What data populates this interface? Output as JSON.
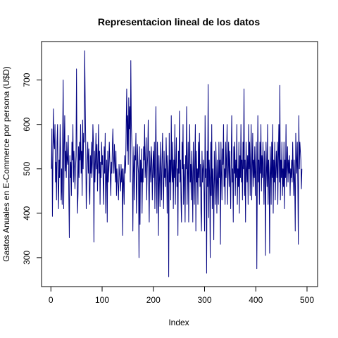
{
  "chart_data": {
    "type": "line",
    "title": "Representacion lineal de los datos",
    "xlabel": "Index",
    "ylabel": "Gastos Anuales en E-Commerce por persona (U$D)",
    "xlim": [
      1,
      500
    ],
    "ylim": [
      257,
      766
    ],
    "x_ticks": [
      0,
      100,
      200,
      300,
      400,
      500
    ],
    "y_ticks": [
      300,
      400,
      500,
      600,
      700
    ],
    "grid": false,
    "series_color": "#000080",
    "series": [
      {
        "values": [
          500,
          590,
          393,
          520,
          635,
          560,
          545,
          600,
          470,
          515,
          430,
          560,
          600,
          465,
          410,
          520,
          480,
          600,
          540,
          430,
          500,
          420,
          575,
          700,
          410,
          555,
          620,
          495,
          540,
          480,
          560,
          520,
          510,
          575,
          440,
          345,
          530,
          480,
          515,
          440,
          560,
          520,
          600,
          470,
          540,
          500,
          455,
          500,
          530,
          725,
          520,
          400,
          445,
          550,
          480,
          560,
          520,
          600,
          490,
          540,
          440,
          610,
          500,
          580,
          560,
          766,
          650,
          560,
          410,
          470,
          520,
          560,
          490,
          545,
          450,
          420,
          530,
          490,
          560,
          480,
          515,
          600,
          560,
          335,
          540,
          470,
          520,
          580,
          500,
          555,
          450,
          520,
          600,
          490,
          540,
          420,
          515,
          480,
          560,
          510,
          530,
          470,
          420,
          550,
          490,
          580,
          400,
          480,
          520,
          380,
          540,
          470,
          500,
          560,
          520,
          480,
          440,
          515,
          490,
          550,
          590,
          530,
          490,
          555,
          510,
          470,
          540,
          440,
          500,
          470,
          460,
          430,
          510,
          490,
          470,
          450,
          510,
          470,
          500,
          350,
          500,
          470,
          420,
          530,
          490,
          510,
          600,
          680,
          540,
          620,
          510,
          660,
          590,
          640,
          470,
          744,
          600,
          560,
          520,
          360,
          490,
          550,
          430,
          530,
          520,
          580,
          400,
          460,
          555,
          510,
          490,
          300,
          550,
          375,
          520,
          470,
          545,
          400,
          500,
          470,
          550,
          520,
          600,
          480,
          510,
          570,
          430,
          500,
          530,
          610,
          460,
          380,
          540,
          500,
          470,
          550,
          520,
          430,
          500,
          540,
          480,
          560,
          410,
          520,
          640,
          470,
          400,
          560,
          500,
          350,
          530,
          480,
          415,
          560,
          500,
          430,
          520,
          580,
          470,
          410,
          540,
          480,
          500,
          460,
          570,
          510,
          400,
          530,
          490,
          257,
          580,
          470,
          520,
          430,
          620,
          500,
          470,
          560,
          410,
          520,
          480,
          600,
          420,
          510,
          570,
          460,
          500,
          350,
          540,
          490,
          630,
          470,
          520,
          430,
          380,
          560,
          500,
          600,
          420,
          510,
          480,
          380,
          530,
          500,
          640,
          420,
          490,
          560,
          380,
          520,
          600,
          470,
          510,
          430,
          540,
          480,
          380,
          560,
          500,
          420,
          520,
          600,
          360,
          540,
          470,
          500,
          420,
          560,
          480,
          580,
          460,
          510,
          400,
          360,
          540,
          470,
          500,
          520,
          440,
          360,
          620,
          480,
          500,
          265,
          540,
          460,
          690,
          390,
          520,
          480,
          300,
          560,
          440,
          600,
          410,
          500,
          460,
          340,
          540,
          480,
          420,
          560,
          500,
          400,
          520,
          470,
          420,
          560,
          480,
          520,
          330,
          560,
          490,
          430,
          545,
          510,
          600,
          460,
          500,
          420,
          560,
          480,
          530,
          600,
          420,
          500,
          560,
          460,
          540,
          480,
          410,
          520,
          620,
          470,
          500,
          380,
          550,
          490,
          560,
          440,
          520,
          480,
          600,
          420,
          500,
          460,
          560,
          400,
          530,
          480,
          600,
          470,
          520,
          430,
          560,
          500,
          680,
          440,
          520,
          380,
          560,
          500,
          470,
          530,
          420,
          600,
          500,
          560,
          440,
          520,
          600,
          430,
          500,
          580,
          460,
          520,
          480,
          550,
          440,
          500,
          560,
          275,
          480,
          620,
          470,
          520,
          420,
          560,
          490,
          600,
          450,
          530,
          480,
          560,
          500,
          420,
          540,
          480,
          305,
          560,
          500,
          460,
          600,
          420,
          520,
          480,
          310,
          550,
          500,
          420,
          560,
          480,
          600,
          400,
          520,
          470,
          560,
          430,
          500,
          540,
          480,
          560,
          420,
          520,
          600,
          470,
          688,
          430,
          520,
          480,
          560,
          440,
          500,
          460,
          560,
          410,
          520,
          480,
          600,
          460,
          500,
          550,
          470,
          520,
          490,
          530,
          440,
          500,
          480,
          520,
          470,
          560,
          500,
          440,
          520,
          470,
          360,
          580,
          520,
          490,
          560,
          470,
          330,
          620,
          500,
          560,
          540,
          520,
          455,
          500
        ]
      }
    ]
  }
}
